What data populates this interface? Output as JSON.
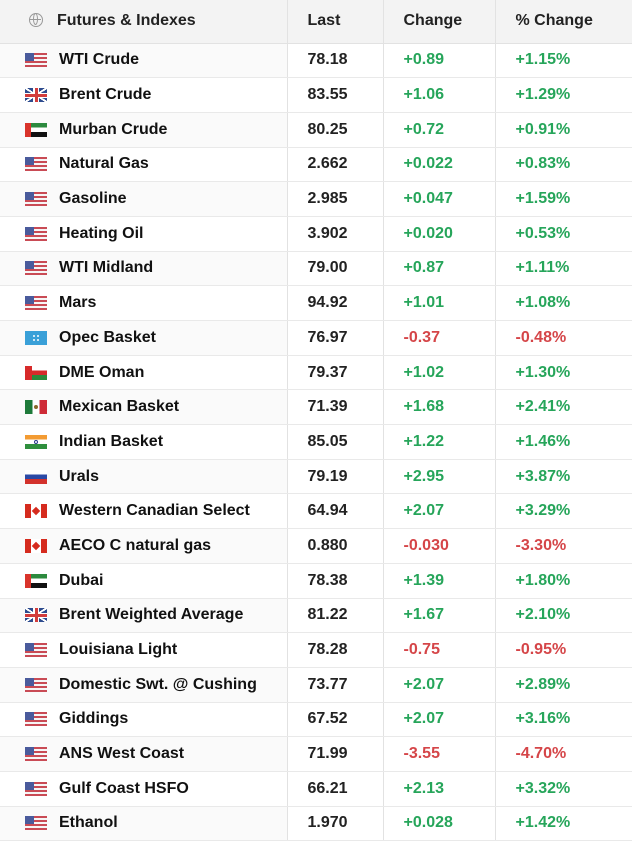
{
  "header": {
    "name": "Futures & Indexes",
    "last": "Last",
    "change": "Change",
    "pct_change": "% Change",
    "icon": "globe-icon"
  },
  "rows": [
    {
      "name": "WTI Crude",
      "flag": "usa",
      "last": "78.18",
      "change": "+0.89",
      "pct": "+1.15%",
      "dir": "pos"
    },
    {
      "name": "Brent Crude",
      "flag": "uk",
      "last": "83.55",
      "change": "+1.06",
      "pct": "+1.29%",
      "dir": "pos"
    },
    {
      "name": "Murban Crude",
      "flag": "uae",
      "last": "80.25",
      "change": "+0.72",
      "pct": "+0.91%",
      "dir": "pos"
    },
    {
      "name": "Natural Gas",
      "flag": "usa",
      "last": "2.662",
      "change": "+0.022",
      "pct": "+0.83%",
      "dir": "pos"
    },
    {
      "name": "Gasoline",
      "flag": "usa",
      "last": "2.985",
      "change": "+0.047",
      "pct": "+1.59%",
      "dir": "pos"
    },
    {
      "name": "Heating Oil",
      "flag": "usa",
      "last": "3.902",
      "change": "+0.020",
      "pct": "+0.53%",
      "dir": "pos"
    },
    {
      "name": "WTI Midland",
      "flag": "usa",
      "last": "79.00",
      "change": "+0.87",
      "pct": "+1.11%",
      "dir": "pos"
    },
    {
      "name": "Mars",
      "flag": "usa",
      "last": "94.92",
      "change": "+1.01",
      "pct": "+1.08%",
      "dir": "pos"
    },
    {
      "name": "Opec Basket",
      "flag": "opec",
      "last": "76.97",
      "change": "-0.37",
      "pct": "-0.48%",
      "dir": "neg"
    },
    {
      "name": "DME Oman",
      "flag": "oman",
      "last": "79.37",
      "change": "+1.02",
      "pct": "+1.30%",
      "dir": "pos"
    },
    {
      "name": "Mexican Basket",
      "flag": "mexico",
      "last": "71.39",
      "change": "+1.68",
      "pct": "+2.41%",
      "dir": "pos"
    },
    {
      "name": "Indian Basket",
      "flag": "india",
      "last": "85.05",
      "change": "+1.22",
      "pct": "+1.46%",
      "dir": "pos"
    },
    {
      "name": "Urals",
      "flag": "russia",
      "last": "79.19",
      "change": "+2.95",
      "pct": "+3.87%",
      "dir": "pos"
    },
    {
      "name": "Western Canadian Select",
      "flag": "canada",
      "last": "64.94",
      "change": "+2.07",
      "pct": "+3.29%",
      "dir": "pos"
    },
    {
      "name": "AECO C natural gas",
      "flag": "canada",
      "last": "0.880",
      "change": "-0.030",
      "pct": "-3.30%",
      "dir": "neg"
    },
    {
      "name": "Dubai",
      "flag": "uae",
      "last": "78.38",
      "change": "+1.39",
      "pct": "+1.80%",
      "dir": "pos"
    },
    {
      "name": "Brent Weighted Average",
      "flag": "uk",
      "last": "81.22",
      "change": "+1.67",
      "pct": "+2.10%",
      "dir": "pos"
    },
    {
      "name": "Louisiana Light",
      "flag": "usa",
      "last": "78.28",
      "change": "-0.75",
      "pct": "-0.95%",
      "dir": "neg"
    },
    {
      "name": "Domestic Swt. @ Cushing",
      "flag": "usa",
      "last": "73.77",
      "change": "+2.07",
      "pct": "+2.89%",
      "dir": "pos"
    },
    {
      "name": "Giddings",
      "flag": "usa",
      "last": "67.52",
      "change": "+2.07",
      "pct": "+3.16%",
      "dir": "pos"
    },
    {
      "name": "ANS West Coast",
      "flag": "usa",
      "last": "71.99",
      "change": "-3.55",
      "pct": "-4.70%",
      "dir": "neg"
    },
    {
      "name": "Gulf Coast HSFO",
      "flag": "usa",
      "last": "66.21",
      "change": "+2.13",
      "pct": "+3.32%",
      "dir": "pos"
    },
    {
      "name": "Ethanol",
      "flag": "usa",
      "last": "1.970",
      "change": "+0.028",
      "pct": "+1.42%",
      "dir": "pos"
    }
  ],
  "colors": {
    "positive": "#26a55a",
    "negative": "#d54548"
  }
}
